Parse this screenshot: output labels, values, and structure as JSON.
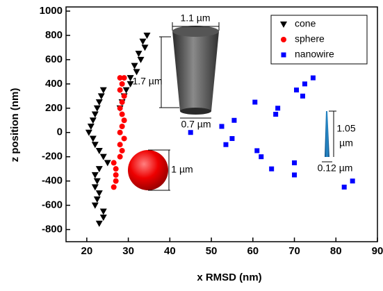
{
  "chart_data": {
    "type": "scatter",
    "x_label": "x RMSD (nm)",
    "y_label": "z position (nm)",
    "xlim": [
      15,
      90
    ],
    "xticks": [
      20,
      30,
      40,
      50,
      60,
      70,
      80,
      90
    ],
    "ylim": [
      -900,
      1000
    ],
    "yticks": [
      -800,
      -600,
      -400,
      -200,
      0,
      200,
      400,
      600,
      800,
      1000
    ],
    "legend_position": "upper right",
    "series": [
      {
        "name": "cone",
        "color": "#000000",
        "marker": "triangle-down",
        "x": [
          34.5,
          33.5,
          34,
          32.5,
          33,
          31.5,
          32,
          30.5,
          30.5,
          29.5,
          29,
          28.5,
          28,
          24,
          23.5,
          23,
          22.5,
          22,
          21.5,
          21,
          20.5,
          21.5,
          22,
          23,
          24,
          25,
          23,
          22,
          22.5,
          22,
          23,
          22.5,
          22,
          24,
          24,
          23
        ],
        "y": [
          800,
          750,
          700,
          650,
          600,
          550,
          500,
          450,
          400,
          350,
          300,
          250,
          200,
          350,
          300,
          250,
          200,
          150,
          100,
          50,
          0,
          -50,
          -100,
          -150,
          -200,
          -250,
          -300,
          -350,
          -400,
          -450,
          -500,
          -550,
          -600,
          -650,
          -700,
          -750
        ]
      },
      {
        "name": "sphere",
        "color": "#ff0000",
        "marker": "circle",
        "x": [
          28,
          29,
          28.5,
          28,
          29,
          28.5,
          28,
          28.5,
          29,
          28.5,
          28,
          29,
          28,
          28.5,
          28,
          26.5,
          27,
          27,
          27,
          26.5
        ],
        "y": [
          450,
          450,
          400,
          350,
          300,
          250,
          200,
          150,
          100,
          50,
          0,
          -50,
          -100,
          -150,
          -200,
          -250,
          -300,
          -350,
          -400,
          -450
        ]
      },
      {
        "name": "nanowire",
        "color": "#0000ff",
        "marker": "square",
        "x": [
          45,
          52.5,
          55.5,
          53.5,
          55,
          60.5,
          61,
          62,
          64.5,
          65.5,
          66,
          70,
          70,
          70.5,
          72,
          72.5,
          74.5,
          82,
          84
        ],
        "y": [
          0,
          50,
          100,
          -100,
          -50,
          250,
          -150,
          -200,
          -300,
          150,
          200,
          -250,
          -350,
          350,
          300,
          400,
          450,
          -450,
          -400
        ]
      }
    ],
    "annotations": [
      "1.1 µm",
      "1.7 µm",
      "0.7 µm",
      "1 µm",
      "1.05",
      "µm",
      "0.12 µm"
    ]
  }
}
